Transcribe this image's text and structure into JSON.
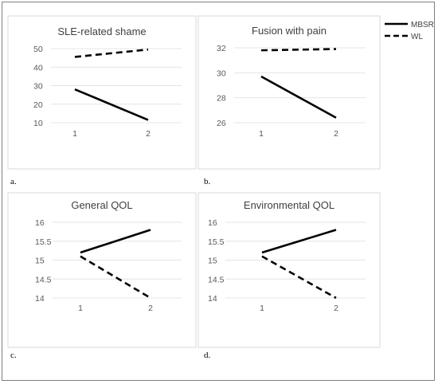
{
  "legend": [
    {
      "name": "MBSR",
      "style": "solid"
    },
    {
      "name": "WL",
      "style": "dashed"
    }
  ],
  "chart_data": [
    {
      "type": "line",
      "panel_label": "a.",
      "title": "SLE-related shame",
      "categories": [
        "1",
        "2"
      ],
      "yticks": [
        "10",
        "20",
        "30",
        "40",
        "50"
      ],
      "ylim": [
        10,
        50
      ],
      "series": [
        {
          "name": "MBSR",
          "values": [
            28,
            11.5
          ]
        },
        {
          "name": "WL",
          "values": [
            45.5,
            49.5
          ]
        }
      ]
    },
    {
      "type": "line",
      "panel_label": "b.",
      "title": "Fusion with pain",
      "categories": [
        "1",
        "2"
      ],
      "yticks": [
        "26",
        "28",
        "30",
        "32"
      ],
      "ylim": [
        26,
        32
      ],
      "series": [
        {
          "name": "MBSR",
          "values": [
            29.7,
            26.4
          ]
        },
        {
          "name": "WL",
          "values": [
            31.8,
            31.9
          ]
        }
      ]
    },
    {
      "type": "line",
      "panel_label": "c.",
      "title": "General QOL",
      "categories": [
        "1",
        "2"
      ],
      "yticks": [
        "14",
        "14.5",
        "15",
        "15.5",
        "16"
      ],
      "ylim": [
        14,
        16
      ],
      "series": [
        {
          "name": "MBSR",
          "values": [
            15.2,
            15.8
          ]
        },
        {
          "name": "WL",
          "values": [
            15.1,
            14.0
          ]
        }
      ]
    },
    {
      "type": "line",
      "panel_label": "d.",
      "title": "Environmental QOL",
      "categories": [
        "1",
        "2"
      ],
      "yticks": [
        "14",
        "14.5",
        "15",
        "15.5",
        "16"
      ],
      "ylim": [
        14,
        16
      ],
      "series": [
        {
          "name": "MBSR",
          "values": [
            15.2,
            15.8
          ]
        },
        {
          "name": "WL",
          "values": [
            15.1,
            14.0
          ]
        }
      ]
    }
  ]
}
